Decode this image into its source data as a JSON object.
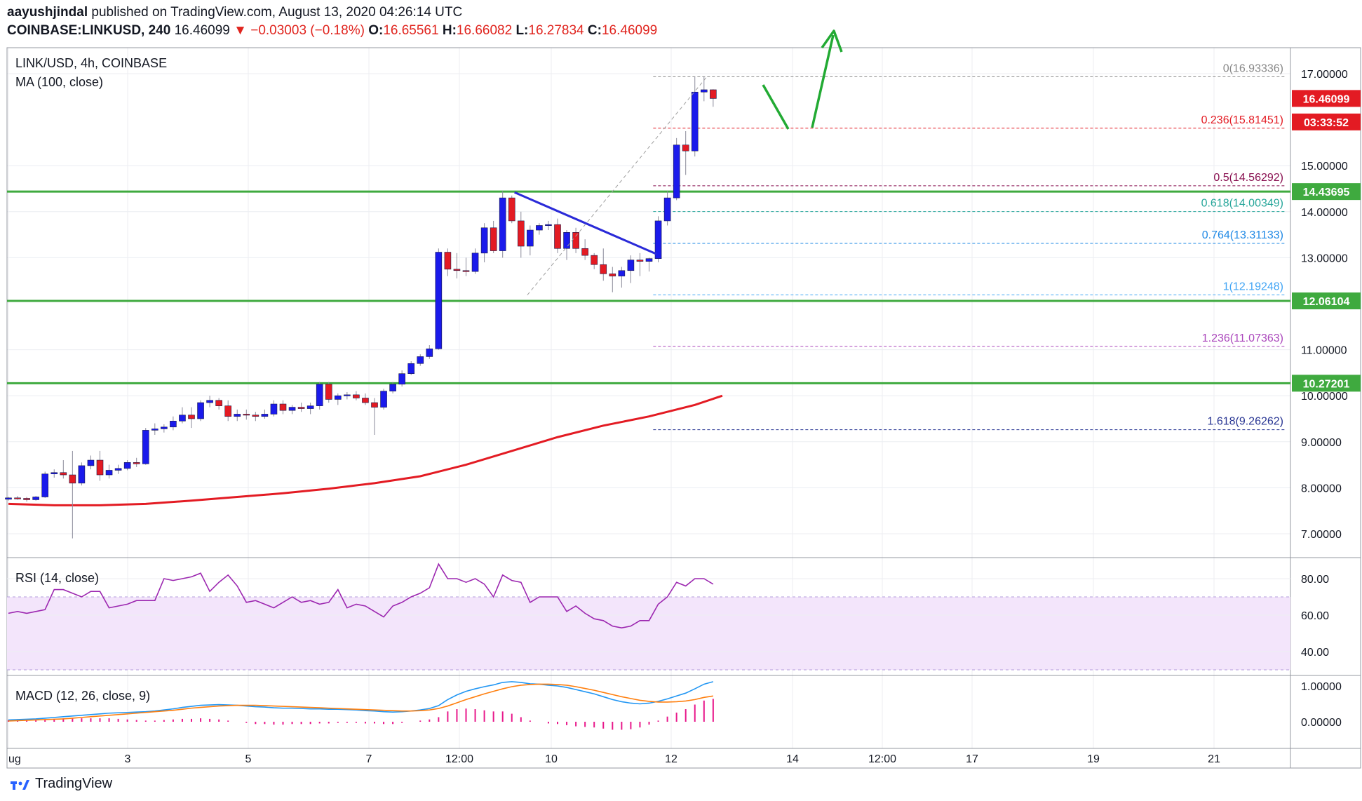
{
  "header": {
    "author": "aayushjindal",
    "published_text": "published on TradingView.com, August 13, 2020 04:26:14 UTC",
    "symbol": "COINBASE:LINKUSD, 240",
    "last": "16.46099",
    "change": "−0.03003 (−0.18%)",
    "o_label": "O:",
    "o": "16.65561",
    "h_label": "H:",
    "h": "16.66082",
    "l_label": "L:",
    "l": "16.27834",
    "c_label": "C:",
    "c": "16.46099"
  },
  "panes": {
    "main_title": "LINK/USD, 4h, COINBASE",
    "ma_title": "MA (100, close)",
    "rsi_title": "RSI (14, close)",
    "macd_title": "MACD (12, 26, close, 9)"
  },
  "footer": {
    "brand": "TradingView",
    "logo_icon": "tradingview-logo-icon"
  },
  "colors": {
    "bull": "#1a1aeb",
    "bear": "#e31b23",
    "ma": "#e31b23",
    "support": "#3faa3f",
    "arrow": "#22aa33",
    "trend": "#2a2ad8",
    "rsi": "#9c27b0",
    "macd": "#2196f3",
    "signal": "#ff7f0e",
    "hist": "#e8198b"
  },
  "chart_data": {
    "type": "candlestick",
    "title": "LINK/USD, 4h, COINBASE",
    "y_ticks": [
      "17.00000",
      "15.00000",
      "14.00000",
      "13.00000",
      "11.00000",
      "10.00000",
      "9.00000",
      "8.00000",
      "7.00000"
    ],
    "y_range": [
      6.3,
      17.6
    ],
    "x_ticks": [
      "ug",
      "3",
      "5",
      "7",
      "12:00",
      "10",
      "12",
      "14",
      "12:00",
      "17",
      "19",
      "21"
    ],
    "x_range": [
      0,
      85
    ],
    "candles": [
      [
        7.75,
        7.8,
        7.72,
        7.78
      ],
      [
        7.78,
        7.82,
        7.74,
        7.77
      ],
      [
        7.77,
        7.8,
        7.7,
        7.74
      ],
      [
        7.74,
        7.82,
        7.72,
        7.8
      ],
      [
        7.8,
        8.35,
        7.78,
        8.3
      ],
      [
        8.3,
        8.4,
        8.22,
        8.33
      ],
      [
        8.33,
        8.6,
        8.2,
        8.28
      ],
      [
        8.28,
        8.8,
        6.9,
        8.1
      ],
      [
        8.1,
        8.55,
        8.05,
        8.48
      ],
      [
        8.48,
        8.7,
        8.4,
        8.6
      ],
      [
        8.6,
        8.8,
        8.15,
        8.28
      ],
      [
        8.28,
        8.5,
        8.2,
        8.38
      ],
      [
        8.38,
        8.5,
        8.3,
        8.42
      ],
      [
        8.42,
        8.6,
        8.38,
        8.55
      ],
      [
        8.55,
        8.65,
        8.45,
        8.52
      ],
      [
        8.52,
        9.3,
        8.5,
        9.25
      ],
      [
        9.25,
        9.4,
        9.15,
        9.28
      ],
      [
        9.28,
        9.38,
        9.2,
        9.32
      ],
      [
        9.32,
        9.55,
        9.25,
        9.45
      ],
      [
        9.45,
        9.75,
        9.4,
        9.58
      ],
      [
        9.58,
        9.75,
        9.3,
        9.5
      ],
      [
        9.5,
        9.9,
        9.45,
        9.85
      ],
      [
        9.85,
        10.0,
        9.75,
        9.9
      ],
      [
        9.9,
        9.95,
        9.7,
        9.78
      ],
      [
        9.78,
        9.9,
        9.45,
        9.55
      ],
      [
        9.55,
        9.7,
        9.45,
        9.6
      ],
      [
        9.6,
        9.7,
        9.48,
        9.58
      ],
      [
        9.58,
        9.65,
        9.45,
        9.55
      ],
      [
        9.55,
        9.7,
        9.5,
        9.6
      ],
      [
        9.6,
        9.9,
        9.55,
        9.82
      ],
      [
        9.82,
        9.9,
        9.6,
        9.68
      ],
      [
        9.68,
        9.8,
        9.6,
        9.75
      ],
      [
        9.75,
        9.85,
        9.65,
        9.72
      ],
      [
        9.72,
        9.85,
        9.6,
        9.78
      ],
      [
        9.78,
        10.3,
        9.7,
        10.25
      ],
      [
        10.25,
        10.3,
        9.85,
        9.92
      ],
      [
        9.92,
        10.05,
        9.8,
        10.0
      ],
      [
        10.0,
        10.08,
        9.92,
        10.02
      ],
      [
        10.02,
        10.1,
        9.9,
        9.95
      ],
      [
        9.95,
        10.05,
        9.8,
        9.85
      ],
      [
        9.85,
        9.95,
        9.15,
        9.75
      ],
      [
        9.75,
        10.15,
        9.7,
        10.1
      ],
      [
        10.1,
        10.3,
        10.05,
        10.25
      ],
      [
        10.25,
        10.55,
        10.2,
        10.48
      ],
      [
        10.48,
        10.75,
        10.45,
        10.7
      ],
      [
        10.7,
        10.9,
        10.65,
        10.85
      ],
      [
        10.85,
        11.1,
        10.8,
        11.02
      ],
      [
        11.02,
        13.2,
        11.0,
        13.12
      ],
      [
        13.12,
        13.2,
        12.6,
        12.75
      ],
      [
        12.75,
        13.1,
        12.55,
        12.72
      ],
      [
        12.72,
        13.0,
        12.6,
        12.7
      ],
      [
        12.7,
        13.2,
        12.65,
        13.1
      ],
      [
        13.1,
        13.75,
        12.9,
        13.65
      ],
      [
        13.65,
        13.8,
        13.1,
        13.15
      ],
      [
        13.15,
        14.45,
        13.0,
        14.3
      ],
      [
        14.3,
        14.35,
        13.75,
        13.8
      ],
      [
        13.8,
        14.0,
        13.0,
        13.25
      ],
      [
        13.25,
        13.7,
        13.05,
        13.6
      ],
      [
        13.6,
        13.75,
        13.5,
        13.7
      ],
      [
        13.7,
        13.8,
        13.6,
        13.72
      ],
      [
        13.72,
        13.85,
        13.1,
        13.2
      ],
      [
        13.2,
        13.6,
        12.95,
        13.55
      ],
      [
        13.55,
        13.65,
        13.1,
        13.2
      ],
      [
        13.2,
        13.4,
        12.95,
        13.05
      ],
      [
        13.05,
        13.1,
        12.75,
        12.85
      ],
      [
        12.85,
        13.2,
        12.5,
        12.65
      ],
      [
        12.65,
        12.8,
        12.25,
        12.6
      ],
      [
        12.6,
        12.8,
        12.35,
        12.72
      ],
      [
        12.72,
        13.05,
        12.45,
        12.95
      ],
      [
        12.95,
        13.1,
        12.6,
        12.92
      ],
      [
        12.92,
        13.0,
        12.7,
        12.98
      ],
      [
        12.98,
        13.9,
        12.9,
        13.8
      ],
      [
        13.8,
        14.45,
        13.7,
        14.3
      ],
      [
        14.3,
        15.6,
        14.25,
        15.45
      ],
      [
        15.45,
        15.75,
        14.8,
        15.32
      ],
      [
        15.32,
        16.93,
        15.2,
        16.6
      ],
      [
        16.6,
        16.93,
        16.4,
        16.65
      ],
      [
        16.65,
        16.66,
        16.28,
        16.46
      ]
    ],
    "ma_100": {
      "x": [
        0,
        5,
        10,
        15,
        20,
        25,
        30,
        35,
        40,
        45,
        50,
        55,
        60,
        65,
        70,
        75,
        78
      ],
      "y": [
        7.65,
        7.62,
        7.62,
        7.65,
        7.72,
        7.8,
        7.88,
        7.98,
        8.1,
        8.25,
        8.5,
        8.8,
        9.1,
        9.35,
        9.55,
        9.8,
        10.0
      ]
    },
    "fibonacci": {
      "levels": [
        {
          "label": "0(16.93336)",
          "value": 16.93336,
          "color": "#888888"
        },
        {
          "label": "0.236(15.81451)",
          "value": 15.81451,
          "color": "#e31b23"
        },
        {
          "label": "0.5(14.56292)",
          "value": 14.56292,
          "color": "#880e4f"
        },
        {
          "label": "0.618(14.00349)",
          "value": 14.00349,
          "color": "#26a69a"
        },
        {
          "label": "0.764(13.31133)",
          "value": 13.31133,
          "color": "#1e88e5"
        },
        {
          "label": "1(12.19248)",
          "value": 12.19248,
          "color": "#42a5f5"
        },
        {
          "label": "1.236(11.07363)",
          "value": 11.07363,
          "color": "#ab47bc"
        },
        {
          "label": "1.618(9.26262)",
          "value": 9.26262,
          "color": "#283593"
        }
      ],
      "x_start": 67,
      "x_end": 135
    },
    "support_levels": [
      14.43695,
      12.06104,
      10.27201
    ],
    "price_labels": [
      {
        "text": "16.46099",
        "value": 16.46099,
        "color": "#e31b23"
      },
      {
        "text": "03:33:52",
        "value": 15.95,
        "color": "#e31b23"
      },
      {
        "text": "14.43695",
        "value": 14.43695,
        "color": "#3faa3f"
      },
      {
        "text": "12.06104",
        "value": 12.06104,
        "color": "#3faa3f"
      },
      {
        "text": "10.27201",
        "value": 10.27201,
        "color": "#3faa3f"
      }
    ],
    "trendline": {
      "x": [
        55.3,
        70.8
      ],
      "y": [
        14.42,
        13.08
      ]
    },
    "rsi": {
      "y_ticks": [
        "80.00",
        "60.00",
        "40.00"
      ],
      "y_range": [
        25,
        90
      ],
      "band": [
        30,
        70
      ],
      "values": [
        61,
        62,
        61,
        62,
        63,
        74,
        74,
        72,
        70,
        73,
        73,
        64,
        65,
        66,
        68,
        68,
        68,
        80,
        79,
        80,
        81,
        83,
        73,
        78,
        82,
        76,
        67,
        68,
        66,
        64,
        67,
        70,
        67,
        68,
        66,
        67,
        74,
        64,
        66,
        65,
        62,
        59,
        65,
        67,
        70,
        72,
        75,
        88,
        80,
        80,
        78,
        80,
        77,
        70,
        82,
        79,
        78,
        67,
        70,
        70,
        70,
        62,
        65,
        61,
        58,
        57,
        54,
        53,
        54,
        57,
        57,
        66,
        70,
        78,
        76,
        80,
        80,
        77
      ]
    },
    "macd": {
      "y_ticks": [
        "1.00000",
        "0.00000"
      ],
      "y_range": [
        -0.35,
        1.15
      ],
      "macd_values": [
        0.05,
        0.06,
        0.07,
        0.08,
        0.1,
        0.12,
        0.14,
        0.16,
        0.18,
        0.2,
        0.22,
        0.24,
        0.25,
        0.26,
        0.27,
        0.28,
        0.3,
        0.33,
        0.36,
        0.4,
        0.43,
        0.46,
        0.47,
        0.48,
        0.47,
        0.46,
        0.44,
        0.42,
        0.41,
        0.39,
        0.38,
        0.38,
        0.37,
        0.36,
        0.36,
        0.35,
        0.35,
        0.34,
        0.33,
        0.31,
        0.3,
        0.28,
        0.27,
        0.28,
        0.3,
        0.33,
        0.37,
        0.45,
        0.62,
        0.75,
        0.85,
        0.92,
        0.98,
        1.03,
        1.1,
        1.12,
        1.1,
        1.06,
        1.05,
        1.02,
        1.0,
        0.96,
        0.9,
        0.84,
        0.78,
        0.7,
        0.62,
        0.56,
        0.52,
        0.5,
        0.52,
        0.57,
        0.64,
        0.72,
        0.8,
        0.92,
        1.05,
        1.12
      ],
      "signal_values": [
        0.02,
        0.03,
        0.04,
        0.05,
        0.06,
        0.07,
        0.08,
        0.1,
        0.12,
        0.14,
        0.16,
        0.18,
        0.2,
        0.22,
        0.24,
        0.26,
        0.28,
        0.3,
        0.32,
        0.35,
        0.38,
        0.4,
        0.42,
        0.44,
        0.45,
        0.46,
        0.46,
        0.46,
        0.45,
        0.44,
        0.43,
        0.42,
        0.41,
        0.4,
        0.39,
        0.38,
        0.37,
        0.36,
        0.35,
        0.34,
        0.33,
        0.32,
        0.31,
        0.3,
        0.3,
        0.31,
        0.33,
        0.37,
        0.44,
        0.53,
        0.62,
        0.7,
        0.78,
        0.85,
        0.92,
        0.98,
        1.02,
        1.04,
        1.05,
        1.05,
        1.04,
        1.02,
        0.98,
        0.93,
        0.88,
        0.82,
        0.76,
        0.7,
        0.65,
        0.6,
        0.57,
        0.55,
        0.55,
        0.56,
        0.58,
        0.62,
        0.68,
        0.72
      ]
    }
  }
}
